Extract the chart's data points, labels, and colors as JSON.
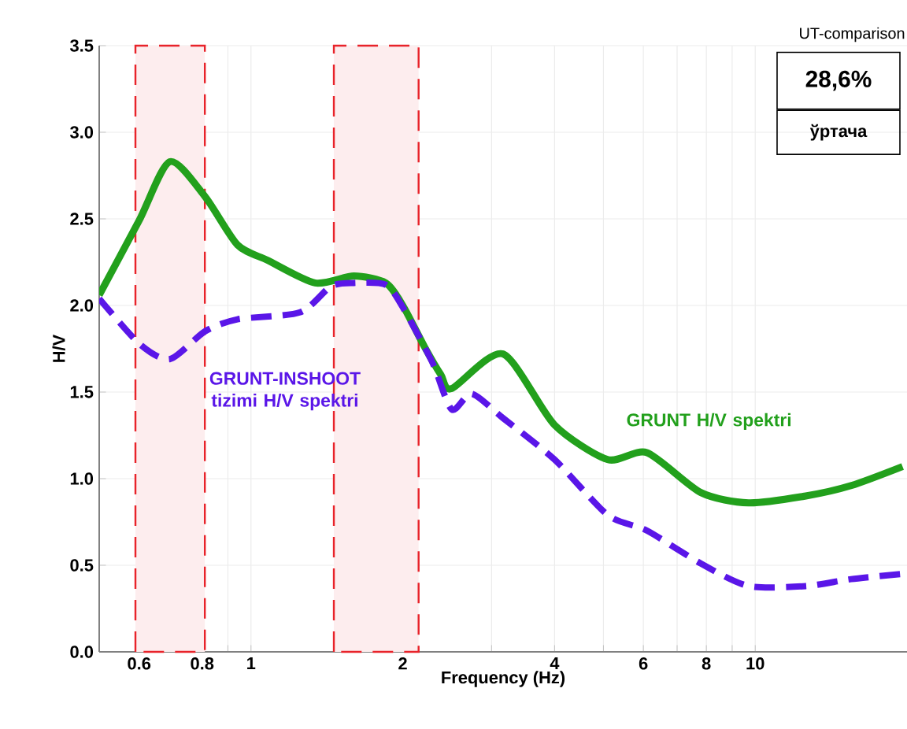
{
  "chart_data": {
    "type": "line",
    "xlabel": "Frequency (Hz)",
    "ylabel": "H/V",
    "log": "x",
    "grid": true,
    "marker": "none",
    "xlim": [
      0.5,
      20
    ],
    "ylim": [
      0,
      3.5
    ],
    "xticks": [
      0.6,
      {
        "value": 0.7,
        "label": null
      },
      0.8,
      {
        "value": 0.9,
        "label": null
      },
      1,
      2,
      {
        "value": 3,
        "label": null
      },
      4,
      {
        "value": 5,
        "label": null
      },
      6,
      {
        "value": 7,
        "label": null
      },
      8,
      {
        "value": 9,
        "label": null
      },
      10
    ],
    "yticks": [
      {
        "value": 0,
        "label": "0.0"
      },
      0.5,
      {
        "value": 1,
        "label": "1.0"
      },
      1.5,
      {
        "value": 2,
        "label": "2.0"
      },
      2.5,
      {
        "value": 3,
        "label": "3.0"
      },
      3.5
    ],
    "series": [
      {
        "name": "GRUNT H/V spektri",
        "color": "#22a01c",
        "line_style": "solid",
        "x": [
          0.5,
          0.6,
          0.69,
          0.81,
          0.94,
          1.08,
          1.34,
          1.6,
          1.85,
          2.0,
          2.21,
          2.38,
          2.5,
          3.16,
          4,
          5.1,
          6.1,
          7.8,
          9.7,
          12.6,
          15.5,
          19.6
        ],
        "values": [
          2.06,
          2.49,
          2.83,
          2.63,
          2.35,
          2.26,
          2.13,
          2.17,
          2.13,
          2.0,
          1.76,
          1.6,
          1.52,
          1.72,
          1.31,
          1.11,
          1.15,
          0.92,
          0.86,
          0.9,
          0.96,
          1.07
        ]
      },
      {
        "name": "GRUNT-INSHOOT tizimi H/V spektri",
        "color": "#5a16e8",
        "line_style": "dashed",
        "x": [
          0.5,
          0.6,
          0.69,
          0.81,
          0.94,
          1.25,
          1.44,
          1.6,
          1.85,
          2.0,
          2.29,
          2.5,
          2.74,
          3.16,
          4,
          5.1,
          6.1,
          7.8,
          9.7,
          12.6,
          15.5,
          19.6
        ],
        "values": [
          2.04,
          1.78,
          1.69,
          1.85,
          1.92,
          1.96,
          2.11,
          2.13,
          2.12,
          1.99,
          1.67,
          1.4,
          1.49,
          1.35,
          1.11,
          0.79,
          0.7,
          0.51,
          0.38,
          0.38,
          0.42,
          0.45
        ]
      }
    ],
    "bands": [
      {
        "axis": "x",
        "from": 0.59,
        "to": 0.81,
        "color": "#e8232a"
      },
      {
        "axis": "x",
        "from": 1.46,
        "to": 2.15,
        "color": "#e8232a"
      }
    ],
    "annotations": [
      "UT-comparison",
      "28,6%",
      "ўртача"
    ]
  }
}
